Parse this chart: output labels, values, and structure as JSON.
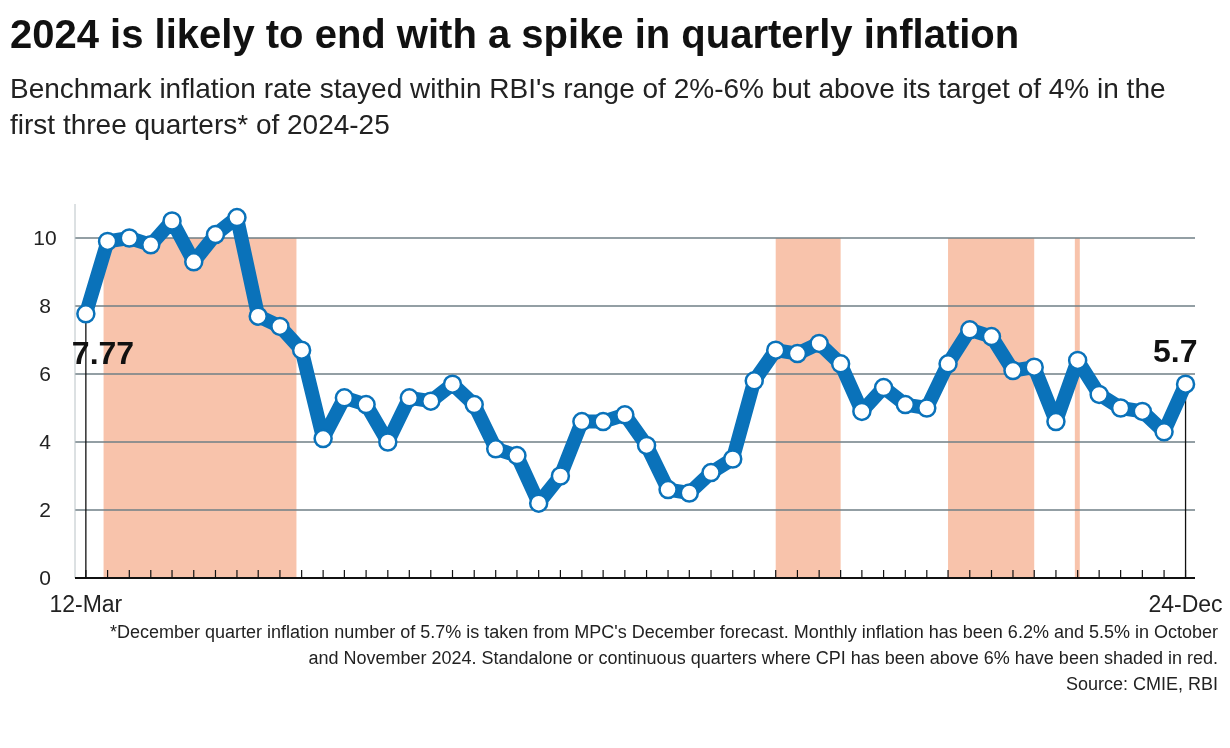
{
  "chart_data": {
    "type": "line",
    "title": "2024 is likely to end with a spike in quarterly inflation",
    "subtitle": "Benchmark inflation rate stayed within RBI's range of 2%-6% but above its target of 4% in the first three quarters* of 2024-25",
    "x": [
      "2012-03",
      "2012-06",
      "2012-09",
      "2012-12",
      "2013-03",
      "2013-06",
      "2013-09",
      "2013-12",
      "2014-03",
      "2014-06",
      "2014-09",
      "2014-12",
      "2015-03",
      "2015-06",
      "2015-09",
      "2015-12",
      "2016-03",
      "2016-06",
      "2016-09",
      "2016-12",
      "2017-03",
      "2017-06",
      "2017-09",
      "2017-12",
      "2018-03",
      "2018-06",
      "2018-09",
      "2018-12",
      "2019-03",
      "2019-06",
      "2019-09",
      "2019-12",
      "2020-03",
      "2020-06",
      "2020-09",
      "2020-12",
      "2021-03",
      "2021-06",
      "2021-09",
      "2021-12",
      "2022-03",
      "2022-06",
      "2022-09",
      "2022-12",
      "2023-03",
      "2023-06",
      "2023-09",
      "2023-12",
      "2024-03",
      "2024-06",
      "2024-09",
      "2024-12"
    ],
    "series": [
      {
        "color": "#0a72ba",
        "values": [
          7.77,
          9.9,
          10.0,
          9.8,
          10.5,
          9.3,
          10.1,
          10.6,
          7.7,
          7.4,
          6.7,
          4.1,
          5.3,
          5.1,
          4.0,
          5.3,
          5.2,
          5.7,
          5.1,
          3.8,
          3.6,
          2.2,
          3.0,
          4.6,
          4.6,
          4.8,
          3.9,
          2.6,
          2.5,
          3.1,
          3.5,
          5.8,
          6.7,
          6.6,
          6.9,
          6.3,
          4.9,
          5.6,
          5.1,
          5.0,
          6.3,
          7.3,
          7.1,
          6.1,
          6.2,
          4.6,
          6.4,
          5.4,
          5.0,
          4.9,
          4.3,
          5.7
        ]
      }
    ],
    "marker": "circle",
    "grid": "y",
    "xlim": [
      "2012-01-15",
      "2025-01-10"
    ],
    "xticks": [
      {
        "value": "2012-03",
        "label": "12-Mar"
      },
      {
        "value": "2012-06",
        "label": null
      },
      {
        "value": "2012-09",
        "label": null
      },
      {
        "value": "2012-12",
        "label": null
      },
      {
        "value": "2013-03",
        "label": null
      },
      {
        "value": "2013-06",
        "label": null
      },
      {
        "value": "2013-09",
        "label": null
      },
      {
        "value": "2013-12",
        "label": null
      },
      {
        "value": "2014-03",
        "label": null
      },
      {
        "value": "2014-06",
        "label": null
      },
      {
        "value": "2014-09",
        "label": null
      },
      {
        "value": "2014-12",
        "label": null
      },
      {
        "value": "2015-03",
        "label": null
      },
      {
        "value": "2015-06",
        "label": null
      },
      {
        "value": "2015-09",
        "label": null
      },
      {
        "value": "2015-12",
        "label": null
      },
      {
        "value": "2016-03",
        "label": null
      },
      {
        "value": "2016-06",
        "label": null
      },
      {
        "value": "2016-09",
        "label": null
      },
      {
        "value": "2016-12",
        "label": null
      },
      {
        "value": "2017-03",
        "label": null
      },
      {
        "value": "2017-06",
        "label": null
      },
      {
        "value": "2017-09",
        "label": null
      },
      {
        "value": "2017-12",
        "label": null
      },
      {
        "value": "2018-03",
        "label": null
      },
      {
        "value": "2018-06",
        "label": null
      },
      {
        "value": "2018-09",
        "label": null
      },
      {
        "value": "2018-12",
        "label": null
      },
      {
        "value": "2019-03",
        "label": null
      },
      {
        "value": "2019-06",
        "label": null
      },
      {
        "value": "2019-09",
        "label": null
      },
      {
        "value": "2019-12",
        "label": null
      },
      {
        "value": "2020-03",
        "label": null
      },
      {
        "value": "2020-06",
        "label": null
      },
      {
        "value": "2020-09",
        "label": null
      },
      {
        "value": "2020-12",
        "label": null
      },
      {
        "value": "2021-03",
        "label": null
      },
      {
        "value": "2021-06",
        "label": null
      },
      {
        "value": "2021-09",
        "label": null
      },
      {
        "value": "2021-12",
        "label": null
      },
      {
        "value": "2022-03",
        "label": null
      },
      {
        "value": "2022-06",
        "label": null
      },
      {
        "value": "2022-09",
        "label": null
      },
      {
        "value": "2022-12",
        "label": null
      },
      {
        "value": "2023-03",
        "label": null
      },
      {
        "value": "2023-06",
        "label": null
      },
      {
        "value": "2023-09",
        "label": null
      },
      {
        "value": "2023-12",
        "label": null
      },
      {
        "value": "2024-03",
        "label": null
      },
      {
        "value": "2024-06",
        "label": null
      },
      {
        "value": "2024-09",
        "label": null
      },
      {
        "value": "2024-12",
        "label": "24-Dec"
      }
    ],
    "ylim": [
      0,
      11
    ],
    "yticks": [
      0,
      2,
      4,
      6,
      8,
      10
    ],
    "bands": [
      {
        "axis": "x",
        "from": "2012-05-15",
        "to": "2014-08-10",
        "color": "#f8c3ab"
      },
      {
        "axis": "x",
        "from": "2020-03",
        "to": "2020-12",
        "color": "#f8c3ab"
      },
      {
        "axis": "x",
        "from": "2022-03",
        "to": "2023-03",
        "color": "#f8c3ab"
      },
      {
        "axis": "x",
        "from": "2023-08-20",
        "to": "2023-09-10",
        "color": "#f8c3ab"
      }
    ],
    "annotations": [
      {
        "text": "7.77",
        "x": "2012-03",
        "y": 7.77
      },
      {
        "text": "5.7",
        "x": "2024-12",
        "y": 5.7
      },
      "*December quarter inflation number of 5.7% is taken from MPC's December forecast. Monthly inflation has been 6.2% and 5.5% in October and November 2024. Standalone or continuous quarters where CPI has been above 6% have been shaded in red.",
      "Source: CMIE, RBI"
    ]
  }
}
